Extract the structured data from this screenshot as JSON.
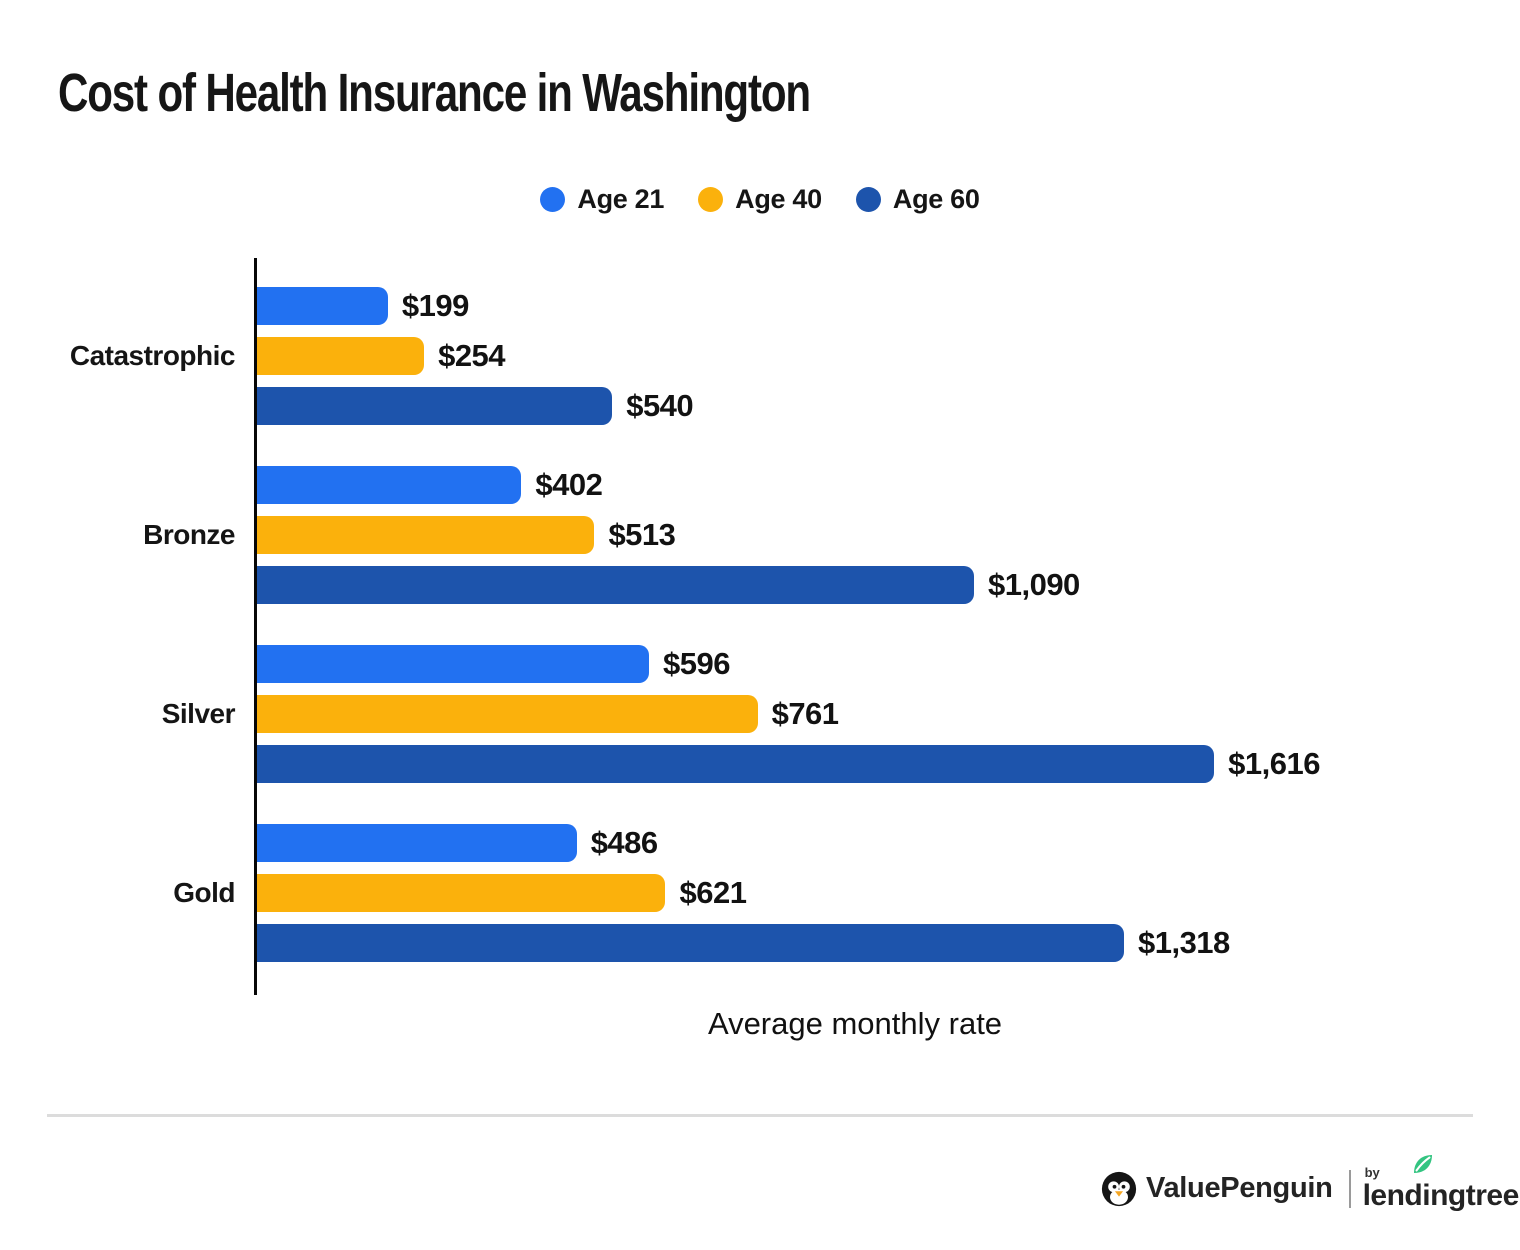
{
  "title": "Cost of Health Insurance in Washington",
  "chart_data": {
    "type": "bar",
    "orientation": "horizontal",
    "title": "Cost of Health Insurance in Washington",
    "xlabel": "Average monthly rate",
    "categories": [
      "Catastrophic",
      "Bronze",
      "Silver",
      "Gold"
    ],
    "xmax": 1616,
    "grid": false,
    "legend_position": "top",
    "series": [
      {
        "name": "Age 21",
        "color": "#2271F1",
        "values": [
          199,
          402,
          596,
          486
        ],
        "labels": [
          "$199",
          "$402",
          "$596",
          "$486"
        ]
      },
      {
        "name": "Age 40",
        "color": "#FBB10C",
        "values": [
          254,
          513,
          761,
          621
        ],
        "labels": [
          "$254",
          "$513",
          "$761",
          "$621"
        ]
      },
      {
        "name": "Age 60",
        "color": "#1D54AC",
        "values": [
          540,
          1090,
          1616,
          1318
        ],
        "labels": [
          "$540",
          "$1,090",
          "$1,616",
          "$1,318"
        ]
      }
    ]
  },
  "footer": {
    "brand": "ValuePenguin",
    "by_label": "by",
    "partner_brand": "lendingtree"
  },
  "colors": {
    "age21_blue": "#2271F1",
    "age40_yellow": "#FBB10C",
    "age60_dark_blue": "#1D54AC",
    "text": "#151515",
    "divider_gray": "#DCDCDC",
    "leaf_green": "#33C481",
    "beak_orange": "#F5A623"
  }
}
